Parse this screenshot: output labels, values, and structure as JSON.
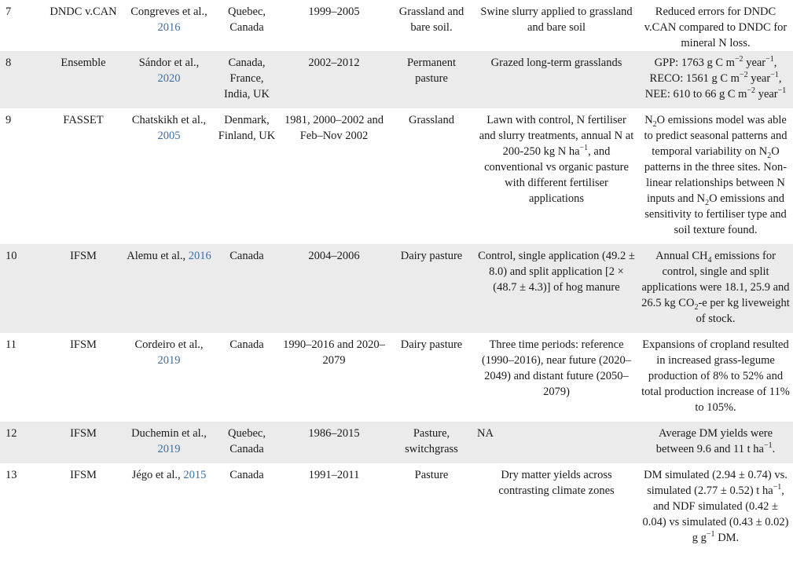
{
  "rows": [
    {
      "num": "7",
      "model": "DNDC v.CAN",
      "ref_authors": "Congreves et al., ",
      "ref_year": "2016",
      "location": "Quebec, Canada",
      "period": "1999–2005",
      "system": "Grassland and bare soil.",
      "treatments": "Swine slurry applied to grassland and bare soil",
      "findings": "Reduced errors for DNDC v.CAN compared to DNDC for mineral N loss."
    },
    {
      "num": "8",
      "model": "Ensemble",
      "ref_authors": "Sándor et al., ",
      "ref_year": "2020",
      "location": "Canada, France, India, UK",
      "period": "2002–2012",
      "system": "Permanent pasture",
      "treatments": "Grazed long-term grasslands",
      "findings_lines": [
        {
          "pre": "GPP: 1763 g C m",
          "sup1": "−2",
          "mid": " year",
          "sup2": "−1",
          "post": ","
        },
        {
          "pre": "RECO: 1561 g C m",
          "sup1": "−2",
          "mid": " year",
          "sup2": "−1",
          "post": ","
        },
        {
          "pre": "NEE: 610 to 66 g C m",
          "sup1": "−2",
          "mid": " year",
          "sup2": "−1",
          "post": ""
        }
      ]
    },
    {
      "num": "9",
      "model": "FASSET",
      "ref_authors": "Chatskikh et al., ",
      "ref_year": "2005",
      "location": "Denmark, Finland, UK",
      "period": "1981, 2000–2002 and Feb–Nov 2002",
      "system": "Grassland",
      "treatments_a": "Lawn with control, N fertiliser and slurry treatments, annual N at 200-250 kg N ha",
      "treatments_sup": "−1",
      "treatments_b": ", and conventional vs organic pasture with different fertiliser applications",
      "findings_a": "N",
      "findings_sub1": "2",
      "findings_b": "O emissions model was able to predict seasonal patterns and temporal variability on N",
      "findings_sub2": "2",
      "findings_c": "O patterns in the three sites. Non-linear relationships between N inputs and N",
      "findings_sub3": "2",
      "findings_d": "O emissions and sensitivity to fertiliser type and soil texture found."
    },
    {
      "num": "10",
      "model": "IFSM",
      "ref_authors": "Alemu et al., ",
      "ref_year": "2016",
      "location": "Canada",
      "period": "2004–2006",
      "system": "Dairy pasture",
      "treatments": "Control, single application (49.2 ± 8.0) and split application [2 × (48.7 ± 4.3)] of hog manure",
      "findings_a": "Annual CH",
      "findings_sub1": "4",
      "findings_b": " emissions for control, single and split applications were 18.1, 25.9 and 26.5 kg CO",
      "findings_sub2": "2",
      "findings_c": "-e per kg liveweight of stock."
    },
    {
      "num": "11",
      "model": "IFSM",
      "ref_authors": "Cordeiro et al., ",
      "ref_year": "2019",
      "location": "Canada",
      "period": "1990–2016 and 2020–2079",
      "system": "Dairy pasture",
      "treatments": "Three time periods: reference (1990–2016), near future (2020–2049) and distant future (2050–2079)",
      "findings": "Expansions of cropland resulted in increased grass-legume production of 8% to 52% and total production increase of 11% to 105%."
    },
    {
      "num": "12",
      "model": "IFSM",
      "ref_authors": "Duchemin et al., ",
      "ref_year": "2019",
      "location": "Quebec, Canada",
      "period": "1986–2015",
      "system": "Pasture, switchgrass",
      "treatments": "NA",
      "findings_a": "Average DM yields were between 9.6 and 11 t ha",
      "findings_sup": "−1",
      "findings_b": "."
    },
    {
      "num": "13",
      "model": "IFSM",
      "ref_authors": "Jégo et al., ",
      "ref_year": "2015",
      "location": "Canada",
      "period": "1991–2011",
      "system": "Pasture",
      "treatments": "Dry matter yields across contrasting climate zones",
      "findings_a": "DM simulated (2.94 ± 0.74) vs. simulated (2.77 ± 0.52) t ha",
      "findings_sup1": "−1",
      "findings_b": ", and NDF simulated (0.42 ± 0.04) vs simulated (0.43 ± 0.02) g g",
      "findings_sup2": "−1",
      "findings_c": " DM."
    }
  ]
}
